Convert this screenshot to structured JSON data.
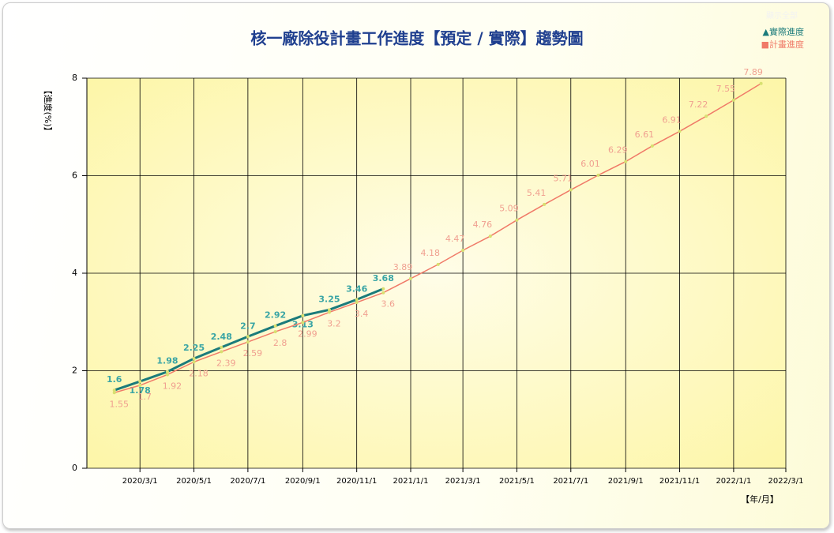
{
  "chart_data": {
    "type": "line",
    "title": "核一廠除役計畫工作進度【預定 / 實際】趨勢圖",
    "legend_toggle": "顯示全部",
    "y_label": "【進度(%)】",
    "x_label": "【年/月】",
    "x": [
      "2020/2/1",
      "2020/3/1",
      "2020/4/1",
      "2020/5/1",
      "2020/6/1",
      "2020/7/1",
      "2020/8/1",
      "2020/9/1",
      "2020/10/1",
      "2020/11/1",
      "2020/12/1",
      "2021/1/1",
      "2021/2/1",
      "2021/3/1",
      "2021/4/1",
      "2021/5/1",
      "2021/6/1",
      "2021/7/1",
      "2021/8/1",
      "2021/9/1",
      "2021/10/1",
      "2021/11/1",
      "2021/12/1",
      "2022/1/1",
      "2022/2/1"
    ],
    "series": [
      {
        "name": "▲實際進度",
        "color": "#1b7b7b",
        "label_color": "#3aa5a5",
        "values": [
          1.6,
          1.78,
          1.98,
          2.25,
          2.48,
          2.7,
          2.92,
          3.13,
          3.25,
          3.46,
          3.68,
          null,
          null,
          null,
          null,
          null,
          null,
          null,
          null,
          null,
          null,
          null,
          null,
          null,
          null
        ]
      },
      {
        "name": "■計畫進度",
        "color": "#f07a68",
        "label_color": "#f0a090",
        "values": [
          1.55,
          1.7,
          1.92,
          2.18,
          2.39,
          2.59,
          2.8,
          2.99,
          3.2,
          3.4,
          3.6,
          3.89,
          4.18,
          4.47,
          4.76,
          5.09,
          5.41,
          5.71,
          6.01,
          6.29,
          6.61,
          6.91,
          7.22,
          7.55,
          7.89
        ]
      }
    ],
    "xlim": [
      "2020/1/1",
      "2022/3/1"
    ],
    "xticks": [
      "2020/3/1",
      "2020/5/1",
      "2020/7/1",
      "2020/9/1",
      "2020/11/1",
      "2021/1/1",
      "2021/3/1",
      "2021/5/1",
      "2021/7/1",
      "2021/9/1",
      "2021/11/1",
      "2022/1/1",
      "2022/3/1"
    ],
    "ylim": [
      0,
      8
    ],
    "yticks": [
      0,
      2,
      4,
      6,
      8
    ],
    "grid": true,
    "legend_position": "top-right"
  }
}
